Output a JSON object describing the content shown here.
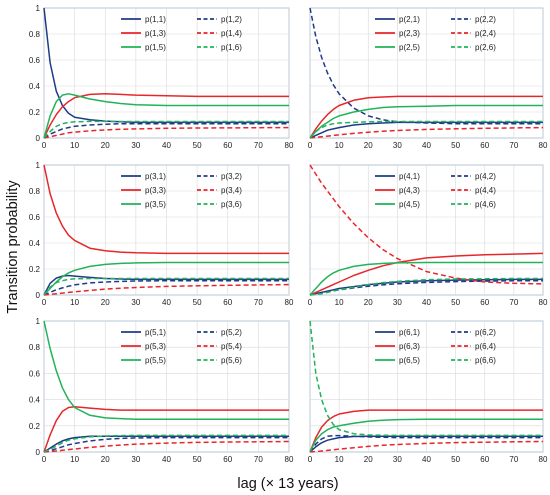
{
  "figure": {
    "ylabel": "Transition probability",
    "xlabel": "lag (× 13 years)"
  },
  "colors": {
    "state1": "#1f3b87",
    "state2": "#1f3b87",
    "state3": "#e8262a",
    "state4": "#e8262a",
    "state5": "#22b35a",
    "state6": "#22b35a"
  },
  "chart_data": [
    {
      "type": "line",
      "panel": "p(1,·)",
      "xlim": [
        0,
        80
      ],
      "ylim": [
        0,
        1
      ],
      "xticks": [
        0,
        10,
        20,
        30,
        40,
        50,
        60,
        70,
        80
      ],
      "yticks": [
        0,
        0.2,
        0.4,
        0.6,
        0.8,
        1
      ],
      "ytick_labels": [
        "0",
        "0.2",
        "0.4",
        "0.6",
        "0.8",
        "1"
      ],
      "x": [
        0,
        2,
        4,
        6,
        8,
        10,
        15,
        20,
        25,
        30,
        40,
        50,
        60,
        70,
        80
      ],
      "legend": "top-right",
      "series": [
        {
          "name": "p(1,1)",
          "color": "#1f3b87",
          "dash": "solid",
          "values": [
            1.0,
            0.58,
            0.36,
            0.25,
            0.19,
            0.16,
            0.14,
            0.13,
            0.125,
            0.12,
            0.12,
            0.12,
            0.12,
            0.12,
            0.12
          ]
        },
        {
          "name": "p(1,2)",
          "color": "#1f3b87",
          "dash": "dashed",
          "values": [
            0.0,
            0.03,
            0.05,
            0.07,
            0.08,
            0.09,
            0.1,
            0.105,
            0.11,
            0.11,
            0.11,
            0.11,
            0.11,
            0.11,
            0.11
          ]
        },
        {
          "name": "p(1,3)",
          "color": "#e8262a",
          "dash": "solid",
          "values": [
            0.0,
            0.1,
            0.18,
            0.24,
            0.28,
            0.31,
            0.335,
            0.34,
            0.335,
            0.33,
            0.325,
            0.32,
            0.32,
            0.32,
            0.32
          ]
        },
        {
          "name": "p(1,4)",
          "color": "#e8262a",
          "dash": "dashed",
          "values": [
            0.0,
            0.01,
            0.02,
            0.03,
            0.04,
            0.045,
            0.055,
            0.062,
            0.067,
            0.07,
            0.075,
            0.077,
            0.078,
            0.079,
            0.08
          ]
        },
        {
          "name": "p(1,5)",
          "color": "#22b35a",
          "dash": "solid",
          "values": [
            0.0,
            0.17,
            0.28,
            0.33,
            0.34,
            0.33,
            0.3,
            0.28,
            0.265,
            0.255,
            0.25,
            0.25,
            0.25,
            0.25,
            0.25
          ]
        },
        {
          "name": "p(1,6)",
          "color": "#22b35a",
          "dash": "dashed",
          "values": [
            0.0,
            0.05,
            0.09,
            0.11,
            0.12,
            0.125,
            0.128,
            0.128,
            0.127,
            0.127,
            0.127,
            0.127,
            0.127,
            0.127,
            0.127
          ]
        }
      ]
    },
    {
      "type": "line",
      "panel": "p(2,·)",
      "xlim": [
        0,
        80
      ],
      "ylim": [
        0,
        1
      ],
      "xticks": [
        0,
        10,
        20,
        30,
        40,
        50,
        60,
        70,
        80
      ],
      "yticks": [
        0,
        0.2,
        0.4,
        0.6,
        0.8,
        1
      ],
      "ytick_labels": [
        "",
        "",
        "",
        "",
        "",
        ""
      ],
      "x": [
        0,
        2,
        4,
        6,
        8,
        10,
        15,
        20,
        25,
        30,
        40,
        50,
        60,
        70,
        80
      ],
      "legend": "top-right",
      "series": [
        {
          "name": "p(2,1)",
          "color": "#1f3b87",
          "dash": "solid",
          "values": [
            0.0,
            0.02,
            0.04,
            0.06,
            0.07,
            0.08,
            0.1,
            0.11,
            0.115,
            0.12,
            0.12,
            0.12,
            0.12,
            0.12,
            0.12
          ]
        },
        {
          "name": "p(2,2)",
          "color": "#1f3b87",
          "dash": "dashed",
          "values": [
            1.0,
            0.78,
            0.62,
            0.5,
            0.41,
            0.34,
            0.23,
            0.17,
            0.14,
            0.125,
            0.115,
            0.11,
            0.11,
            0.11,
            0.11
          ]
        },
        {
          "name": "p(2,3)",
          "color": "#e8262a",
          "dash": "solid",
          "values": [
            0.0,
            0.07,
            0.13,
            0.18,
            0.22,
            0.25,
            0.29,
            0.31,
            0.315,
            0.32,
            0.32,
            0.32,
            0.32,
            0.32,
            0.32
          ]
        },
        {
          "name": "p(2,4)",
          "color": "#e8262a",
          "dash": "dashed",
          "values": [
            0.0,
            0.005,
            0.01,
            0.015,
            0.02,
            0.025,
            0.035,
            0.045,
            0.052,
            0.058,
            0.066,
            0.071,
            0.075,
            0.078,
            0.08
          ]
        },
        {
          "name": "p(2,5)",
          "color": "#22b35a",
          "dash": "solid",
          "values": [
            0.0,
            0.05,
            0.09,
            0.12,
            0.15,
            0.17,
            0.2,
            0.22,
            0.235,
            0.24,
            0.245,
            0.25,
            0.25,
            0.25,
            0.25
          ]
        },
        {
          "name": "p(2,6)",
          "color": "#22b35a",
          "dash": "dashed",
          "values": [
            0.0,
            0.05,
            0.08,
            0.1,
            0.11,
            0.115,
            0.12,
            0.125,
            0.127,
            0.127,
            0.127,
            0.127,
            0.127,
            0.127,
            0.127
          ]
        }
      ]
    },
    {
      "type": "line",
      "panel": "p(3,·)",
      "xlim": [
        0,
        80
      ],
      "ylim": [
        0,
        1
      ],
      "xticks": [
        0,
        10,
        20,
        30,
        40,
        50,
        60,
        70,
        80
      ],
      "yticks": [
        0,
        0.2,
        0.4,
        0.6,
        0.8,
        1
      ],
      "ytick_labels": [
        "0",
        "0.2",
        "0.4",
        "0.6",
        "0.8",
        "1"
      ],
      "x": [
        0,
        2,
        4,
        6,
        8,
        10,
        15,
        20,
        25,
        30,
        40,
        50,
        60,
        70,
        80
      ],
      "legend": "top-right",
      "series": [
        {
          "name": "p(3,1)",
          "color": "#1f3b87",
          "dash": "solid",
          "values": [
            0.0,
            0.09,
            0.13,
            0.145,
            0.15,
            0.145,
            0.135,
            0.127,
            0.123,
            0.12,
            0.12,
            0.12,
            0.12,
            0.12,
            0.12
          ]
        },
        {
          "name": "p(3,2)",
          "color": "#1f3b87",
          "dash": "dashed",
          "values": [
            0.0,
            0.02,
            0.04,
            0.055,
            0.068,
            0.078,
            0.093,
            0.1,
            0.105,
            0.108,
            0.11,
            0.11,
            0.11,
            0.11,
            0.11
          ]
        },
        {
          "name": "p(3,3)",
          "color": "#e8262a",
          "dash": "solid",
          "values": [
            1.0,
            0.78,
            0.63,
            0.53,
            0.46,
            0.42,
            0.36,
            0.34,
            0.33,
            0.325,
            0.32,
            0.32,
            0.32,
            0.32,
            0.32
          ]
        },
        {
          "name": "p(3,4)",
          "color": "#e8262a",
          "dash": "dashed",
          "values": [
            0.0,
            0.005,
            0.01,
            0.015,
            0.02,
            0.025,
            0.035,
            0.045,
            0.052,
            0.058,
            0.066,
            0.071,
            0.075,
            0.078,
            0.08
          ]
        },
        {
          "name": "p(3,5)",
          "color": "#22b35a",
          "dash": "solid",
          "values": [
            0.0,
            0.05,
            0.1,
            0.14,
            0.17,
            0.19,
            0.22,
            0.235,
            0.243,
            0.247,
            0.25,
            0.25,
            0.25,
            0.25,
            0.25
          ]
        },
        {
          "name": "p(3,6)",
          "color": "#22b35a",
          "dash": "dashed",
          "values": [
            0.0,
            0.06,
            0.095,
            0.11,
            0.12,
            0.125,
            0.127,
            0.127,
            0.127,
            0.127,
            0.127,
            0.127,
            0.127,
            0.127,
            0.127
          ]
        }
      ]
    },
    {
      "type": "line",
      "panel": "p(4,·)",
      "xlim": [
        0,
        80
      ],
      "ylim": [
        0,
        1
      ],
      "xticks": [
        0,
        10,
        20,
        30,
        40,
        50,
        60,
        70,
        80
      ],
      "yticks": [
        0,
        0.2,
        0.4,
        0.6,
        0.8,
        1
      ],
      "ytick_labels": [
        "",
        "",
        "",
        "",
        "",
        ""
      ],
      "x": [
        0,
        2,
        4,
        6,
        8,
        10,
        15,
        20,
        25,
        30,
        40,
        50,
        60,
        70,
        80
      ],
      "legend": "top-right",
      "series": [
        {
          "name": "p(4,1)",
          "color": "#1f3b87",
          "dash": "solid",
          "values": [
            0.0,
            0.01,
            0.02,
            0.03,
            0.04,
            0.05,
            0.065,
            0.08,
            0.09,
            0.1,
            0.11,
            0.115,
            0.118,
            0.12,
            0.12
          ]
        },
        {
          "name": "p(4,2)",
          "color": "#1f3b87",
          "dash": "dashed",
          "values": [
            0.0,
            0.008,
            0.016,
            0.024,
            0.032,
            0.04,
            0.055,
            0.068,
            0.078,
            0.086,
            0.097,
            0.103,
            0.107,
            0.109,
            0.11
          ]
        },
        {
          "name": "p(4,3)",
          "color": "#e8262a",
          "dash": "solid",
          "values": [
            0.0,
            0.02,
            0.04,
            0.06,
            0.08,
            0.1,
            0.15,
            0.19,
            0.225,
            0.25,
            0.285,
            0.3,
            0.31,
            0.315,
            0.32
          ]
        },
        {
          "name": "p(4,4)",
          "color": "#e8262a",
          "dash": "dashed",
          "values": [
            1.0,
            0.93,
            0.86,
            0.8,
            0.74,
            0.68,
            0.55,
            0.44,
            0.35,
            0.28,
            0.18,
            0.13,
            0.1,
            0.09,
            0.085
          ]
        },
        {
          "name": "p(4,5)",
          "color": "#22b35a",
          "dash": "solid",
          "values": [
            0.0,
            0.05,
            0.1,
            0.14,
            0.17,
            0.19,
            0.22,
            0.235,
            0.243,
            0.247,
            0.25,
            0.25,
            0.25,
            0.25,
            0.25
          ]
        },
        {
          "name": "p(4,6)",
          "color": "#22b35a",
          "dash": "dashed",
          "values": [
            0.0,
            0.005,
            0.01,
            0.02,
            0.03,
            0.04,
            0.06,
            0.08,
            0.095,
            0.105,
            0.118,
            0.123,
            0.125,
            0.127,
            0.127
          ]
        }
      ]
    },
    {
      "type": "line",
      "panel": "p(5,·)",
      "xlim": [
        0,
        80
      ],
      "ylim": [
        0,
        1
      ],
      "xticks": [
        0,
        10,
        20,
        30,
        40,
        50,
        60,
        70,
        80
      ],
      "yticks": [
        0,
        0.2,
        0.4,
        0.6,
        0.8,
        1
      ],
      "ytick_labels": [
        "0",
        "0.2",
        "0.4",
        "0.6",
        "0.8",
        "1"
      ],
      "x": [
        0,
        2,
        4,
        6,
        8,
        10,
        15,
        20,
        25,
        30,
        40,
        50,
        60,
        70,
        80
      ],
      "legend": "top-right",
      "series": [
        {
          "name": "p(5,1)",
          "color": "#1f3b87",
          "dash": "solid",
          "values": [
            0.0,
            0.03,
            0.06,
            0.085,
            0.1,
            0.11,
            0.12,
            0.12,
            0.12,
            0.12,
            0.12,
            0.12,
            0.12,
            0.12,
            0.12
          ]
        },
        {
          "name": "p(5,2)",
          "color": "#1f3b87",
          "dash": "dashed",
          "values": [
            0.0,
            0.01,
            0.025,
            0.04,
            0.055,
            0.065,
            0.085,
            0.097,
            0.104,
            0.108,
            0.11,
            0.11,
            0.11,
            0.11,
            0.11
          ]
        },
        {
          "name": "p(5,3)",
          "color": "#e8262a",
          "dash": "solid",
          "values": [
            0.0,
            0.13,
            0.24,
            0.31,
            0.34,
            0.345,
            0.335,
            0.325,
            0.32,
            0.32,
            0.32,
            0.32,
            0.32,
            0.32,
            0.32
          ]
        },
        {
          "name": "p(5,4)",
          "color": "#e8262a",
          "dash": "dashed",
          "values": [
            0.0,
            0.004,
            0.008,
            0.013,
            0.018,
            0.023,
            0.035,
            0.045,
            0.053,
            0.06,
            0.068,
            0.073,
            0.076,
            0.078,
            0.08
          ]
        },
        {
          "name": "p(5,5)",
          "color": "#22b35a",
          "dash": "solid",
          "values": [
            1.0,
            0.79,
            0.62,
            0.49,
            0.4,
            0.34,
            0.28,
            0.26,
            0.255,
            0.25,
            0.25,
            0.25,
            0.25,
            0.25,
            0.25
          ]
        },
        {
          "name": "p(5,6)",
          "color": "#22b35a",
          "dash": "dashed",
          "values": [
            0.0,
            0.02,
            0.045,
            0.07,
            0.09,
            0.1,
            0.115,
            0.122,
            0.125,
            0.127,
            0.127,
            0.127,
            0.127,
            0.127,
            0.127
          ]
        }
      ]
    },
    {
      "type": "line",
      "panel": "p(6,·)",
      "xlim": [
        0,
        80
      ],
      "ylim": [
        0,
        1
      ],
      "xticks": [
        0,
        10,
        20,
        30,
        40,
        50,
        60,
        70,
        80
      ],
      "yticks": [
        0,
        0.2,
        0.4,
        0.6,
        0.8,
        1
      ],
      "ytick_labels": [
        "",
        "",
        "",
        "",
        "",
        ""
      ],
      "x": [
        0,
        2,
        4,
        6,
        8,
        10,
        15,
        20,
        25,
        30,
        40,
        50,
        60,
        70,
        80
      ],
      "legend": "top-right",
      "series": [
        {
          "name": "p(6,1)",
          "color": "#1f3b87",
          "dash": "solid",
          "values": [
            0.0,
            0.04,
            0.07,
            0.09,
            0.1,
            0.11,
            0.118,
            0.12,
            0.12,
            0.12,
            0.12,
            0.12,
            0.12,
            0.12,
            0.12
          ]
        },
        {
          "name": "p(6,2)",
          "color": "#1f3b87",
          "dash": "dashed",
          "values": [
            0.0,
            0.06,
            0.1,
            0.12,
            0.125,
            0.125,
            0.12,
            0.115,
            0.112,
            0.11,
            0.11,
            0.11,
            0.11,
            0.11,
            0.11
          ]
        },
        {
          "name": "p(6,3)",
          "color": "#e8262a",
          "dash": "solid",
          "values": [
            0.0,
            0.11,
            0.19,
            0.24,
            0.27,
            0.29,
            0.31,
            0.32,
            0.32,
            0.32,
            0.32,
            0.32,
            0.32,
            0.32,
            0.32
          ]
        },
        {
          "name": "p(6,4)",
          "color": "#e8262a",
          "dash": "dashed",
          "values": [
            0.0,
            0.004,
            0.008,
            0.012,
            0.017,
            0.022,
            0.033,
            0.043,
            0.051,
            0.057,
            0.066,
            0.072,
            0.075,
            0.078,
            0.08
          ]
        },
        {
          "name": "p(6,5)",
          "color": "#22b35a",
          "dash": "solid",
          "values": [
            0.0,
            0.09,
            0.14,
            0.17,
            0.19,
            0.2,
            0.22,
            0.235,
            0.243,
            0.247,
            0.25,
            0.25,
            0.25,
            0.25,
            0.25
          ]
        },
        {
          "name": "p(6,6)",
          "color": "#22b35a",
          "dash": "dashed",
          "values": [
            1.0,
            0.6,
            0.4,
            0.28,
            0.21,
            0.17,
            0.14,
            0.13,
            0.128,
            0.127,
            0.127,
            0.127,
            0.127,
            0.127,
            0.127
          ]
        }
      ]
    }
  ]
}
